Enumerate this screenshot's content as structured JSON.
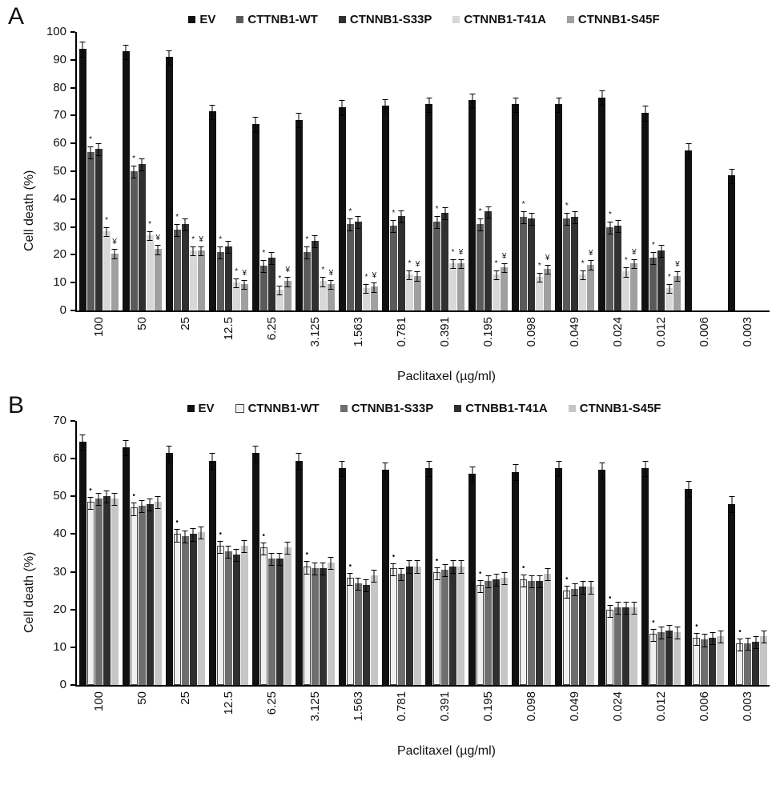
{
  "figure": {
    "background": "#ffffff"
  },
  "chart_data": [
    {
      "type": "bar",
      "panel_label": "A",
      "title": "",
      "ylabel": "Cell death (%)",
      "xlabel": "Paclitaxel (µg/ml)",
      "ylim": [
        0,
        100
      ],
      "ytick_step": 10,
      "grid": false,
      "legend_position": "top",
      "categories": [
        "100",
        "50",
        "25",
        "12.5",
        "6.25",
        "3.125",
        "1.563",
        "0.781",
        "0.391",
        "0.195",
        "0.098",
        "0.049",
        "0.024",
        "0.012",
        "0.006",
        "0.003"
      ],
      "series": [
        {
          "name": "EV",
          "color": "#111111",
          "pattern": "solid",
          "error": 2.5,
          "marker": "",
          "values": [
            94,
            93,
            91,
            71.5,
            67,
            68.5,
            73,
            73.5,
            74,
            75.5,
            74,
            74,
            76.5,
            71,
            57.5,
            48.5
          ]
        },
        {
          "name": "CTTNB1-WT",
          "color": "#5a5a5a",
          "pattern": "dots",
          "error": 2,
          "marker": "*",
          "values": [
            57,
            50,
            29,
            21,
            16,
            21,
            31,
            30.5,
            32,
            31,
            33.5,
            33,
            30,
            19,
            0,
            0
          ]
        },
        {
          "name": "CTNNB1-S33P",
          "color": "#303030",
          "pattern": "hlines",
          "error": 2,
          "marker": "",
          "values": [
            58,
            52.5,
            31,
            23,
            19,
            25,
            32,
            34,
            35,
            35.5,
            33,
            33.5,
            30.5,
            21.5,
            0,
            0
          ]
        },
        {
          "name": "CTNNB1-T41A",
          "color": "#d8d8d8",
          "pattern": "solid",
          "error": 1.5,
          "marker": "*",
          "values": [
            28.5,
            27,
            21.5,
            10,
            7.5,
            10.5,
            8,
            13,
            17,
            13,
            12,
            13,
            14,
            8,
            0,
            0
          ]
        },
        {
          "name": "CTNNB1-S45F",
          "color": "#a0a0a0",
          "pattern": "solid",
          "error": 1.5,
          "marker": "¥",
          "values": [
            20.5,
            22,
            21.5,
            9.5,
            10.5,
            9.5,
            8.5,
            12.5,
            17,
            15.5,
            15,
            16.5,
            17,
            12.5,
            0,
            0
          ]
        }
      ]
    },
    {
      "type": "bar",
      "panel_label": "B",
      "title": "",
      "ylabel": "Cell death (%)",
      "xlabel": "Paclitaxel (µg/ml)",
      "ylim": [
        0,
        70
      ],
      "ytick_step": 10,
      "grid": false,
      "legend_position": "top",
      "categories": [
        "100",
        "50",
        "25",
        "12.5",
        "6.25",
        "3.125",
        "1.563",
        "0.781",
        "0.391",
        "0.195",
        "0.098",
        "0.049",
        "0.024",
        "0.012",
        "0.006",
        "0.003"
      ],
      "series": [
        {
          "name": "EV",
          "color": "#111111",
          "pattern": "solid",
          "error": 2,
          "marker": "",
          "values": [
            64.5,
            63,
            61.5,
            59.5,
            61.5,
            59.5,
            57.5,
            57,
            57.5,
            56,
            56.5,
            57.5,
            57,
            57.5,
            52,
            48
          ]
        },
        {
          "name": "CTNNB1-WT",
          "color": "#f0f0f0",
          "pattern": "solid",
          "border": true,
          "error": 1.5,
          "marker": "•",
          "values": [
            48.5,
            47,
            40,
            37,
            36.5,
            31.5,
            28.5,
            31,
            30,
            26.5,
            28,
            25,
            20,
            13.5,
            12.5,
            11
          ]
        },
        {
          "name": "CTNNB1-S33P",
          "color": "#6e6e6e",
          "pattern": "solid",
          "error": 1.5,
          "marker": "",
          "values": [
            49.5,
            47.5,
            39.5,
            35.5,
            33.5,
            31,
            27,
            29.5,
            30.5,
            27.5,
            27.5,
            25.5,
            20.5,
            14,
            12,
            11
          ]
        },
        {
          "name": "CTNBB1-T41A",
          "color": "#2f2f2f",
          "pattern": "solid",
          "error": 1.5,
          "marker": "",
          "values": [
            50,
            48,
            40,
            34.5,
            33.5,
            31,
            26.5,
            31.5,
            31.5,
            28,
            27.5,
            26,
            20.5,
            14.5,
            12.5,
            11.5
          ]
        },
        {
          "name": "CTNNB1-S45F",
          "color": "#c6c6c6",
          "pattern": "solid",
          "error": 1.5,
          "marker": "",
          "values": [
            49.5,
            48.5,
            40.5,
            37,
            36.5,
            32.5,
            29,
            31.5,
            31.5,
            28.5,
            29.5,
            26,
            20.5,
            14,
            13,
            13
          ]
        }
      ]
    }
  ]
}
